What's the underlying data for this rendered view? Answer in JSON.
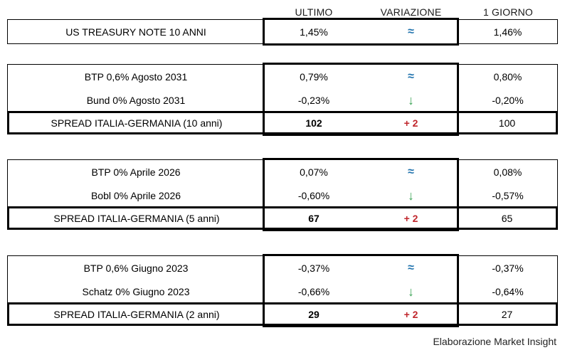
{
  "header": {
    "col_ultimo": "ULTIMO",
    "col_variazione": "VARIAZIONE",
    "col_giorno": "1 GIORNO"
  },
  "colors": {
    "stable_blue": "#1f72ad",
    "down_green": "#3aa355",
    "change_red": "#c0262c",
    "border_black": "#000000"
  },
  "icons": {
    "stable": "≈",
    "down": "↓"
  },
  "tables": [
    {
      "name": "us-treasury",
      "rows": [
        {
          "label": "US TREASURY NOTE 10 ANNI",
          "ultimo": "1,45%",
          "variazione": "≈",
          "trend": "stable",
          "giorno": "1,46%"
        }
      ]
    },
    {
      "name": "italia-germania-10-anni",
      "rows": [
        {
          "label": "BTP 0,6% Agosto 2031",
          "ultimo": "0,79%",
          "variazione": "≈",
          "trend": "stable",
          "giorno": "0,80%"
        },
        {
          "label": "Bund 0% Agosto 2031",
          "ultimo": "-0,23%",
          "variazione": "↓",
          "trend": "down",
          "giorno": "-0,20%"
        }
      ],
      "spread": {
        "label": "SPREAD ITALIA-GERMANIA (10 anni)",
        "ultimo": "102",
        "variazione": "+ 2",
        "giorno": "100"
      }
    },
    {
      "name": "italia-germania-5-anni",
      "rows": [
        {
          "label": "BTP 0% Aprile 2026",
          "ultimo": "0,07%",
          "variazione": "≈",
          "trend": "stable",
          "giorno": "0,08%"
        },
        {
          "label": "Bobl 0% Aprile 2026",
          "ultimo": "-0,60%",
          "variazione": "↓",
          "trend": "down",
          "giorno": "-0,57%"
        }
      ],
      "spread": {
        "label": "SPREAD ITALIA-GERMANIA (5 anni)",
        "ultimo": "67",
        "variazione": "+ 2",
        "giorno": "65"
      }
    },
    {
      "name": "italia-germania-2-anni",
      "rows": [
        {
          "label": "BTP 0,6% Giugno 2023",
          "ultimo": "-0,37%",
          "variazione": "≈",
          "trend": "stable",
          "giorno": "-0,37%"
        },
        {
          "label": "Schatz 0% Giugno 2023",
          "ultimo": "-0,66%",
          "variazione": "↓",
          "trend": "down",
          "giorno": "-0,64%"
        }
      ],
      "spread": {
        "label": "SPREAD ITALIA-GERMANIA (2 anni)",
        "ultimo": "29",
        "variazione": "+ 2",
        "giorno": "27"
      }
    }
  ],
  "footer": {
    "credit": "Elaborazione Market Insight"
  }
}
